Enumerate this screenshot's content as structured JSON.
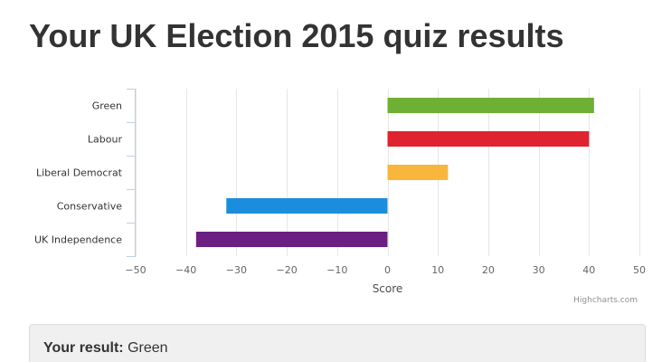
{
  "page": {
    "title": "Your UK Election 2015 quiz results"
  },
  "chart_data": {
    "type": "bar",
    "orientation": "horizontal",
    "categories": [
      "Green",
      "Labour",
      "Liberal Democrat",
      "Conservative",
      "UK Independence"
    ],
    "values": [
      41,
      40,
      12,
      -32,
      -38
    ],
    "colors": [
      "#6eb033",
      "#e0242f",
      "#f8b73c",
      "#1b8ddd",
      "#6b1f82"
    ],
    "xlabel": "Score",
    "xlim": [
      -50,
      50
    ],
    "xticks": [
      -50,
      -40,
      -30,
      -20,
      -10,
      0,
      10,
      20,
      30,
      40,
      50
    ],
    "xtick_labels": [
      "−50",
      "−40",
      "−30",
      "−20",
      "−10",
      "0",
      "10",
      "20",
      "30",
      "40",
      "50"
    ],
    "grid": true,
    "credit": "Highcharts.com"
  },
  "result": {
    "label": "Your result:",
    "value": "Green"
  }
}
